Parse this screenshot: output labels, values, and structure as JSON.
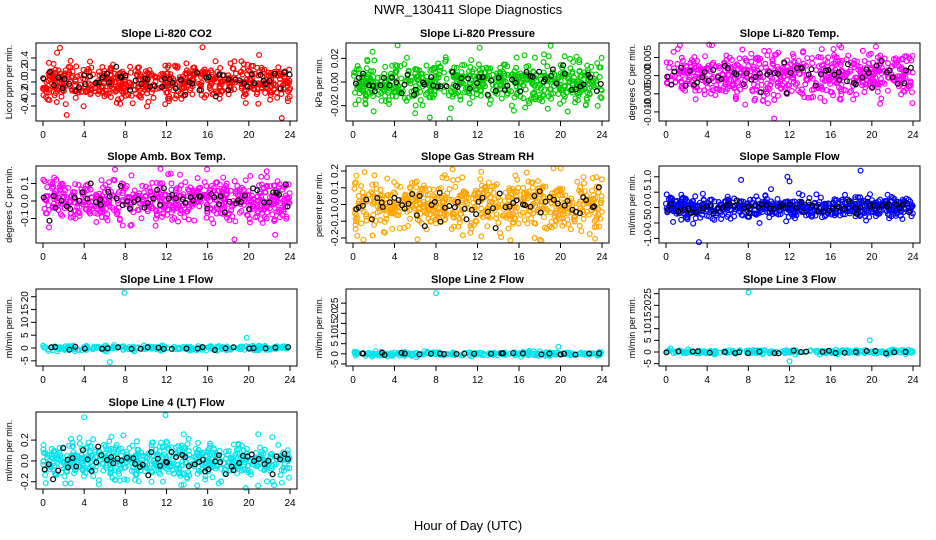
{
  "main_title": "NWR_130411  Slope Diagnostics",
  "xlabel": "Hour of Day (UTC)",
  "colors": {
    "overlay": "#000000"
  },
  "chart_data": [
    {
      "type": "scatter",
      "title": "Slope Li-820 CO2",
      "ylabel": "Licor ppm per min.",
      "color": "#ff0000",
      "xlim": [
        0,
        24
      ],
      "ylim": [
        -0.65,
        0.65
      ],
      "xticks": [
        "0",
        "4",
        "8",
        "12",
        "16",
        "20",
        "24"
      ],
      "yticks": [
        {
          "v": -0.4,
          "t": "-0.4"
        },
        {
          "v": -0.2,
          "t": "-0.2"
        },
        {
          "v": 0.0,
          "t": "0.0"
        },
        {
          "v": 0.2,
          "t": "0.2"
        },
        {
          "v": 0.4,
          "t": "0.4"
        }
      ],
      "spread": 0.16,
      "outliers": [
        [
          15.5,
          0.58
        ],
        [
          23.2,
          -0.6
        ],
        [
          2.3,
          -0.55
        ]
      ],
      "seed": 11,
      "n": 600
    },
    {
      "type": "scatter",
      "title": "Slope Li-820 Pressure",
      "ylabel": "kPa per min.",
      "color": "#00cc00",
      "xlim": [
        0,
        24
      ],
      "ylim": [
        -0.033,
        0.033
      ],
      "xticks": [
        "0",
        "4",
        "8",
        "12",
        "16",
        "20",
        "24"
      ],
      "yticks": [
        {
          "v": -0.02,
          "t": "-0.02"
        },
        {
          "v": 0.0,
          "t": "0.00"
        },
        {
          "v": 0.02,
          "t": "0.02"
        }
      ],
      "spread": 0.009,
      "outliers": [
        [
          4.3,
          0.031
        ],
        [
          7.4,
          -0.03
        ],
        [
          12.2,
          0.029
        ]
      ],
      "seed": 23,
      "n": 600
    },
    {
      "type": "scatter",
      "title": "Slope Li-820 Temp.",
      "ylabel": "degrees C per min.",
      "color": "#ff00ff",
      "xlim": [
        0,
        24
      ],
      "ylim": [
        -0.0125,
        0.009
      ],
      "xticks": [
        "0",
        "4",
        "8",
        "12",
        "16",
        "20",
        "24"
      ],
      "yticks": [
        {
          "v": -0.01,
          "t": "-0.010"
        },
        {
          "v": -0.005,
          "t": "-0.005"
        },
        {
          "v": 0.0,
          "t": "0.000"
        },
        {
          "v": 0.005,
          "t": "0.005"
        }
      ],
      "spread": 0.0032,
      "outliers": [
        [
          10.5,
          -0.0118
        ],
        [
          4.2,
          0.0085
        ]
      ],
      "seed": 37,
      "n": 600
    },
    {
      "type": "scatter",
      "title": "Slope Amb. Box Temp.",
      "ylabel": "degrees C per min.",
      "color": "#ff00ff",
      "xlim": [
        0,
        24
      ],
      "ylim": [
        -0.24,
        0.2
      ],
      "xticks": [
        "0",
        "4",
        "8",
        "12",
        "16",
        "20",
        "24"
      ],
      "yticks": [
        {
          "v": -0.1,
          "t": "-0.1"
        },
        {
          "v": 0.0,
          "t": "0.0"
        },
        {
          "v": 0.1,
          "t": "0.1"
        }
      ],
      "spread": 0.06,
      "outliers": [
        [
          18.6,
          -0.22
        ],
        [
          7.0,
          0.18
        ]
      ],
      "seed": 41,
      "n": 600
    },
    {
      "type": "scatter",
      "title": "Slope Gas Stream RH",
      "ylabel": "percent per min.",
      "color": "#ffa500",
      "xlim": [
        0,
        24
      ],
      "ylim": [
        -0.23,
        0.23
      ],
      "xticks": [
        "0",
        "4",
        "8",
        "12",
        "16",
        "20",
        "24"
      ],
      "yticks": [
        {
          "v": -0.2,
          "t": "-0.2"
        },
        {
          "v": -0.1,
          "t": "-0.1"
        },
        {
          "v": 0.0,
          "t": "0.0"
        },
        {
          "v": 0.1,
          "t": "0.1"
        },
        {
          "v": 0.2,
          "t": "0.2"
        }
      ],
      "spread": 0.08,
      "outliers": [
        [
          1.0,
          -0.21
        ],
        [
          9.6,
          0.21
        ],
        [
          17.5,
          -0.2
        ]
      ],
      "seed": 53,
      "n": 600
    },
    {
      "type": "scatter",
      "title": "Slope Sample Flow",
      "ylabel": "ml/min per min.",
      "color": "#0000ff",
      "xlim": [
        0,
        24
      ],
      "ylim": [
        -1.15,
        1.35
      ],
      "xticks": [
        "0",
        "4",
        "8",
        "12",
        "16",
        "20",
        "24"
      ],
      "yticks": [
        {
          "v": -1.0,
          "t": "-1.0"
        },
        {
          "v": -0.5,
          "t": "-0.5"
        },
        {
          "v": 0.0,
          "t": "0.0"
        },
        {
          "v": 0.5,
          "t": "0.5"
        },
        {
          "v": 1.0,
          "t": "1.0"
        }
      ],
      "spread": 0.16,
      "outliers": [
        [
          3.2,
          -1.12
        ],
        [
          18.9,
          1.2
        ],
        [
          11.8,
          1.0
        ],
        [
          12.0,
          0.85
        ],
        [
          10.2,
          0.6
        ],
        [
          7.3,
          0.9
        ]
      ],
      "seed": 67,
      "n": 600
    },
    {
      "type": "scatter",
      "title": "Slope Line 1 Flow",
      "ylabel": "ml/min per min.",
      "color": "#00e5ee",
      "xlim": [
        0,
        24
      ],
      "ylim": [
        -7,
        23
      ],
      "xticks": [
        "0",
        "4",
        "8",
        "12",
        "16",
        "20",
        "24"
      ],
      "yticks": [
        {
          "v": -5,
          "t": "-5"
        },
        {
          "v": 0,
          "t": "0"
        },
        {
          "v": 5,
          "t": "5"
        },
        {
          "v": 10,
          "t": "10"
        },
        {
          "v": 15,
          "t": "15"
        },
        {
          "v": 20,
          "t": "20"
        }
      ],
      "spread": 0.5,
      "outliers": [
        [
          7.9,
          21.5
        ],
        [
          19.8,
          4.0
        ],
        [
          6.5,
          -5.5
        ]
      ],
      "seed": 71,
      "n": 250
    },
    {
      "type": "scatter",
      "title": "Slope Line 2 Flow",
      "ylabel": "ml/min per min.",
      "color": "#00e5ee",
      "xlim": [
        0,
        24
      ],
      "ylim": [
        -6,
        32
      ],
      "xticks": [
        "0",
        "4",
        "8",
        "12",
        "16",
        "20",
        "24"
      ],
      "yticks": [
        {
          "v": -5,
          "t": "-5"
        },
        {
          "v": 0,
          "t": "0"
        },
        {
          "v": 5,
          "t": "5"
        },
        {
          "v": 10,
          "t": "10"
        },
        {
          "v": 15,
          "t": "15"
        },
        {
          "v": 20,
          "t": "20"
        },
        {
          "v": 25,
          "t": "25"
        }
      ],
      "spread": 0.5,
      "outliers": [
        [
          8.0,
          30.0
        ],
        [
          19.8,
          3.5
        ]
      ],
      "seed": 83,
      "n": 250
    },
    {
      "type": "scatter",
      "title": "Slope Line 3 Flow",
      "ylabel": "ml/min per min.",
      "color": "#00e5ee",
      "xlim": [
        0,
        24
      ],
      "ylim": [
        -6,
        27
      ],
      "xticks": [
        "0",
        "4",
        "8",
        "12",
        "16",
        "20",
        "24"
      ],
      "yticks": [
        {
          "v": -5,
          "t": "-5"
        },
        {
          "v": 0,
          "t": "0"
        },
        {
          "v": 5,
          "t": "5"
        },
        {
          "v": 10,
          "t": "10"
        },
        {
          "v": 15,
          "t": "15"
        },
        {
          "v": 20,
          "t": "20"
        },
        {
          "v": 25,
          "t": "25"
        }
      ],
      "spread": 0.5,
      "outliers": [
        [
          8.0,
          25.5
        ],
        [
          19.8,
          5.0
        ],
        [
          12.0,
          -4.0
        ]
      ],
      "seed": 97,
      "n": 250
    },
    {
      "type": "scatter",
      "title": "Slope Line 4 (LT) Flow",
      "ylabel": "ml/min per min.",
      "color": "#00e5ee",
      "xlim": [
        0,
        24
      ],
      "ylim": [
        -0.27,
        0.47
      ],
      "xticks": [
        "0",
        "4",
        "8",
        "12",
        "16",
        "20",
        "24"
      ],
      "yticks": [
        {
          "v": -0.2,
          "t": "-0.2"
        },
        {
          "v": 0.0,
          "t": "0.0"
        },
        {
          "v": 0.2,
          "t": "0.2"
        }
      ],
      "spread": 0.09,
      "outliers": [
        [
          4.0,
          0.42
        ],
        [
          11.9,
          0.44
        ],
        [
          19.7,
          -0.26
        ]
      ],
      "seed": 101,
      "n": 600
    }
  ]
}
